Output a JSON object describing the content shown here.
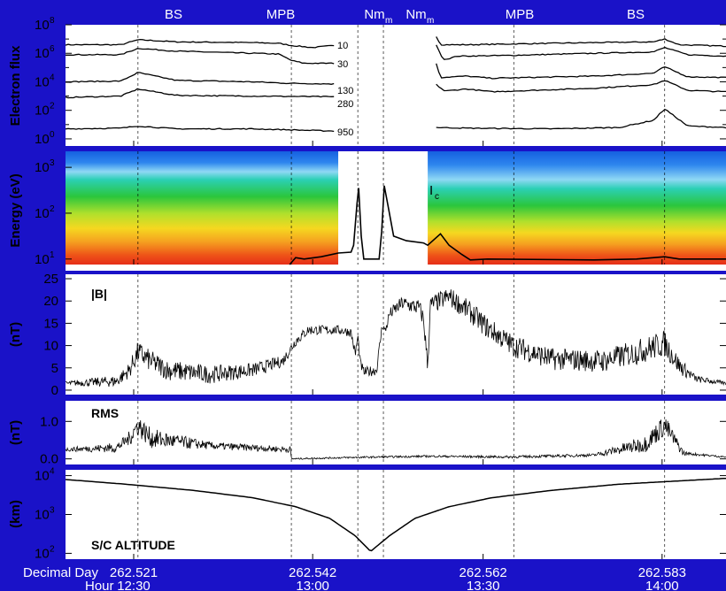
{
  "chart_data": {
    "type": "multi-panel line",
    "colors": {
      "background": "#1a12c8",
      "panel": "#ffffff",
      "trace": "#000000"
    },
    "event_labels": [
      {
        "label": "BS",
        "decimal_day": 262.5215
      },
      {
        "label": "MPB",
        "decimal_day": 262.5395
      },
      {
        "label": "Nm",
        "decimal_day": 262.5473
      },
      {
        "label": "Nm",
        "decimal_day": 262.5503
      },
      {
        "label": "MPB",
        "decimal_day": 262.5656
      },
      {
        "label": "BS",
        "decimal_day": 262.5833
      }
    ],
    "event_sub": "m",
    "x_axis": {
      "range": [
        262.513,
        262.5905
      ],
      "label_day": "Decimal Day",
      "label_hour": "Hour",
      "ticks": [
        {
          "day": "262.521",
          "hour": "12:30",
          "value": 262.521
        },
        {
          "day": "262.542",
          "hour": "13:00",
          "value": 262.542
        },
        {
          "day": "262.562",
          "hour": "13:30",
          "value": 262.562
        },
        {
          "day": "262.583",
          "hour": "14:00",
          "value": 262.583
        }
      ]
    },
    "panels": [
      {
        "id": "flux",
        "ylabel": "Electron flux",
        "scale": "log",
        "ylim_exp": [
          -0.5,
          8
        ],
        "tick_base": "10",
        "tick_exps": [
          "0",
          "2",
          "4",
          "6",
          "8"
        ],
        "gap": [
          262.5455,
          262.5565
        ],
        "series": [
          {
            "name": "10",
            "pre": [
              [
                262.513,
                6.6
              ],
              [
                262.5195,
                6.6
              ],
              [
                262.5215,
                6.95
              ],
              [
                262.526,
                6.8
              ],
              [
                262.535,
                6.75
              ],
              [
                262.538,
                6.7
              ],
              [
                262.5395,
                6.55
              ],
              [
                262.542,
                6.4
              ],
              [
                262.5445,
                6.55
              ]
            ],
            "post": [
              [
                262.5565,
                7.2
              ],
              [
                262.557,
                6.6
              ],
              [
                262.56,
                6.6
              ],
              [
                262.565,
                6.65
              ],
              [
                262.575,
                6.75
              ],
              [
                262.582,
                6.8
              ],
              [
                262.5833,
                7.0
              ],
              [
                262.585,
                6.6
              ],
              [
                262.5905,
                6.5
              ]
            ]
          },
          {
            "name": "30",
            "pre": [
              [
                262.513,
                5.9
              ],
              [
                262.5195,
                5.9
              ],
              [
                262.5215,
                6.35
              ],
              [
                262.526,
                6.15
              ],
              [
                262.535,
                6.0
              ],
              [
                262.538,
                5.95
              ],
              [
                262.5395,
                5.5
              ],
              [
                262.541,
                5.3
              ],
              [
                262.5445,
                5.3
              ]
            ],
            "post": [
              [
                262.5565,
                6.6
              ],
              [
                262.557,
                5.9
              ],
              [
                262.5575,
                5.55
              ],
              [
                262.559,
                5.8
              ],
              [
                262.565,
                5.85
              ],
              [
                262.575,
                6.0
              ],
              [
                262.582,
                6.1
              ],
              [
                262.5833,
                6.4
              ],
              [
                262.586,
                5.9
              ],
              [
                262.5905,
                5.8
              ]
            ]
          },
          {
            "name": "130",
            "pre": [
              [
                262.513,
                4.0
              ],
              [
                262.5195,
                4.05
              ],
              [
                262.5215,
                4.65
              ],
              [
                262.526,
                4.1
              ],
              [
                262.535,
                4.0
              ],
              [
                262.539,
                3.9
              ],
              [
                262.5445,
                3.85
              ]
            ],
            "post": [
              [
                262.5565,
                5.3
              ],
              [
                262.557,
                4.3
              ],
              [
                262.56,
                4.4
              ],
              [
                262.563,
                4.25
              ],
              [
                262.575,
                4.4
              ],
              [
                262.582,
                4.6
              ],
              [
                262.5833,
                5.05
              ],
              [
                262.586,
                4.35
              ],
              [
                262.5905,
                4.3
              ]
            ]
          },
          {
            "name": "280",
            "pre": [
              [
                262.513,
                2.9
              ],
              [
                262.5195,
                3.0
              ],
              [
                262.5215,
                3.5
              ],
              [
                262.526,
                3.05
              ],
              [
                262.535,
                3.0
              ],
              [
                262.5445,
                2.95
              ]
            ],
            "post": [
              [
                262.5565,
                3.8
              ],
              [
                262.5575,
                3.35
              ],
              [
                262.56,
                3.5
              ],
              [
                262.563,
                3.3
              ],
              [
                262.575,
                3.55
              ],
              [
                262.582,
                3.8
              ],
              [
                262.5833,
                4.1
              ],
              [
                262.586,
                3.4
              ],
              [
                262.5905,
                3.3
              ]
            ]
          },
          {
            "name": "950",
            "pre": [
              [
                262.513,
                0.7
              ],
              [
                262.5195,
                0.75
              ],
              [
                262.5215,
                0.9
              ],
              [
                262.526,
                0.7
              ],
              [
                262.535,
                0.7
              ],
              [
                262.5445,
                0.55
              ]
            ],
            "post": [
              [
                262.5565,
                0.8
              ],
              [
                262.56,
                0.75
              ],
              [
                262.57,
                0.7
              ],
              [
                262.578,
                0.8
              ],
              [
                262.582,
                1.3
              ],
              [
                262.5833,
                2.1
              ],
              [
                262.586,
                0.9
              ],
              [
                262.5905,
                0.8
              ]
            ]
          }
        ]
      },
      {
        "id": "spectrogram",
        "ylabel": "Energy (eV)",
        "scale": "log",
        "ylim_exp": [
          0.88,
          3.35
        ],
        "tick_base": "10",
        "tick_exps": [
          "1",
          "2",
          "3"
        ],
        "gap": [
          262.545,
          262.5555
        ],
        "annotation": "I",
        "annotation_sub": "c",
        "line": [
          [
            262.5393,
            0.88
          ],
          [
            262.54,
            1.03
          ],
          [
            262.541,
            1.0
          ],
          [
            262.543,
            1.05
          ],
          [
            262.545,
            1.13
          ],
          [
            262.5465,
            1.15
          ],
          [
            262.5468,
            1.3
          ],
          [
            262.5472,
            2.2
          ],
          [
            262.5474,
            2.55
          ],
          [
            262.5477,
            1.5
          ],
          [
            262.548,
            1.0
          ],
          [
            262.5498,
            1.0
          ],
          [
            262.5501,
            1.6
          ],
          [
            262.5504,
            2.6
          ],
          [
            262.5508,
            2.2
          ],
          [
            262.5515,
            1.5
          ],
          [
            262.553,
            1.4
          ],
          [
            262.555,
            1.35
          ],
          [
            262.5555,
            1.3
          ],
          [
            262.557,
            1.55
          ],
          [
            262.558,
            1.3
          ],
          [
            262.5595,
            1.1
          ],
          [
            262.5605,
            0.98
          ],
          [
            262.5625,
            1.0
          ],
          [
            262.575,
            0.98
          ],
          [
            262.58,
            1.0
          ],
          [
            262.5833,
            1.05
          ],
          [
            262.585,
            1.0
          ],
          [
            262.5905,
            1.0
          ]
        ]
      },
      {
        "id": "bfield",
        "label": "|B|",
        "ylabel": "(nT)",
        "scale": "linear",
        "ylim": [
          -1,
          26
        ],
        "ticks": [
          "0",
          "5",
          "10",
          "15",
          "20",
          "25"
        ],
        "series": [
          [
            262.513,
            1.5
          ],
          [
            262.519,
            2.0
          ],
          [
            262.5205,
            4.5
          ],
          [
            262.5215,
            8.5
          ],
          [
            262.523,
            6.5
          ],
          [
            262.525,
            4.5
          ],
          [
            262.53,
            3.5
          ],
          [
            262.535,
            4.5
          ],
          [
            262.5385,
            6.5
          ],
          [
            262.54,
            11.0
          ],
          [
            262.5415,
            13.5
          ],
          [
            262.545,
            13.5
          ],
          [
            262.5465,
            13.0
          ],
          [
            262.547,
            8.0
          ],
          [
            262.5473,
            12.0
          ],
          [
            262.5476,
            6.0
          ],
          [
            262.548,
            4.0
          ],
          [
            262.5495,
            4.5
          ],
          [
            262.5502,
            15.0
          ],
          [
            262.5505,
            13.0
          ],
          [
            262.551,
            17.0
          ],
          [
            262.5525,
            19.5
          ],
          [
            262.5545,
            18.5
          ],
          [
            262.555,
            16.0
          ],
          [
            262.5555,
            5.5
          ],
          [
            262.5558,
            19.0
          ],
          [
            262.558,
            21.0
          ],
          [
            262.5605,
            17.5
          ],
          [
            262.5625,
            14.0
          ],
          [
            262.5655,
            10.0
          ],
          [
            262.57,
            7.0
          ],
          [
            262.576,
            6.5
          ],
          [
            262.58,
            8.5
          ],
          [
            262.5833,
            10.5
          ],
          [
            262.585,
            5.5
          ],
          [
            262.587,
            2.5
          ],
          [
            262.5905,
            1.5
          ]
        ],
        "noise_amp": [
          [
            262.513,
            0.5
          ],
          [
            262.52,
            1.5
          ],
          [
            262.5215,
            2.5
          ],
          [
            262.53,
            2.0
          ],
          [
            262.5395,
            1.2
          ],
          [
            262.545,
            1.0
          ],
          [
            262.55,
            1.2
          ],
          [
            262.555,
            2.0
          ],
          [
            262.562,
            2.5
          ],
          [
            262.575,
            2.5
          ],
          [
            262.5833,
            3.0
          ],
          [
            262.587,
            0.8
          ],
          [
            262.5905,
            0.4
          ]
        ]
      },
      {
        "id": "rms",
        "label": "RMS",
        "ylabel": "(nT)",
        "scale": "linear",
        "ylim": [
          -0.15,
          1.55
        ],
        "ticks": [
          "0.0",
          "1.0"
        ],
        "series": [
          [
            262.513,
            0.25
          ],
          [
            262.519,
            0.3
          ],
          [
            262.5205,
            0.55
          ],
          [
            262.5215,
            0.9
          ],
          [
            262.523,
            0.55
          ],
          [
            262.53,
            0.35
          ],
          [
            262.5394,
            0.25
          ],
          [
            262.5395,
            0.0
          ],
          [
            262.545,
            0.03
          ],
          [
            262.55,
            0.05
          ],
          [
            262.556,
            0.07
          ],
          [
            262.565,
            0.05
          ],
          [
            262.575,
            0.1
          ],
          [
            262.581,
            0.4
          ],
          [
            262.5833,
            0.9
          ],
          [
            262.5855,
            0.15
          ],
          [
            262.5905,
            0.05
          ]
        ],
        "noise_amp": [
          [
            262.513,
            0.05
          ],
          [
            262.52,
            0.15
          ],
          [
            262.5215,
            0.3
          ],
          [
            262.53,
            0.1
          ],
          [
            262.5394,
            0.08
          ],
          [
            262.5395,
            0.02
          ],
          [
            262.56,
            0.03
          ],
          [
            262.575,
            0.04
          ],
          [
            262.5833,
            0.3
          ],
          [
            262.586,
            0.04
          ],
          [
            262.5905,
            0.02
          ]
        ]
      },
      {
        "id": "altitude",
        "label": "S/C ALTITUDE",
        "ylabel": "(km)",
        "scale": "log",
        "ylim_exp": [
          1.85,
          4.15
        ],
        "tick_base": "10",
        "tick_exps": [
          "2",
          "3",
          "4"
        ],
        "periapsis": {
          "decimal_day": 262.5488,
          "altitude_km": 110
        },
        "series": [
          [
            262.513,
            3.9
          ],
          [
            262.52,
            3.78
          ],
          [
            262.528,
            3.62
          ],
          [
            262.535,
            3.43
          ],
          [
            262.54,
            3.2
          ],
          [
            262.544,
            2.9
          ],
          [
            262.547,
            2.45
          ],
          [
            262.5488,
            2.05
          ],
          [
            262.551,
            2.45
          ],
          [
            262.554,
            2.9
          ],
          [
            262.558,
            3.2
          ],
          [
            262.563,
            3.43
          ],
          [
            262.57,
            3.62
          ],
          [
            262.578,
            3.78
          ],
          [
            262.5905,
            3.93
          ]
        ]
      }
    ]
  }
}
